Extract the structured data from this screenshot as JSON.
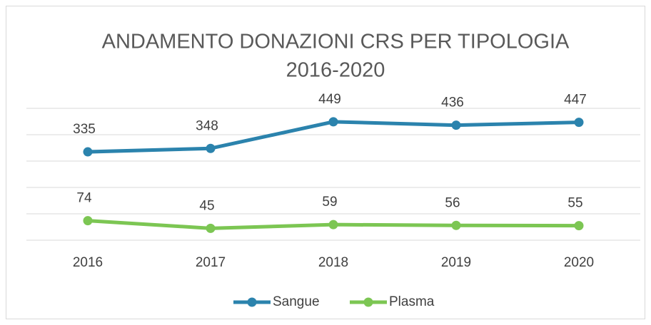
{
  "chart_data": {
    "type": "line",
    "title": "ANDAMENTO DONAZIONI CRS PER TIPOLOGIA",
    "subtitle": "2016-2020",
    "categories": [
      "2016",
      "2017",
      "2018",
      "2019",
      "2020"
    ],
    "series": [
      {
        "name": "Sangue",
        "color": "#2b83ad",
        "values": [
          335,
          348,
          449,
          436,
          447
        ]
      },
      {
        "name": "Plasma",
        "color": "#7cc653",
        "values": [
          74,
          45,
          59,
          56,
          55
        ]
      }
    ],
    "ylim": [
      0,
      500
    ],
    "yticks": [
      0,
      100,
      200,
      300,
      400,
      500
    ],
    "grid": true,
    "legend": "bottom"
  }
}
